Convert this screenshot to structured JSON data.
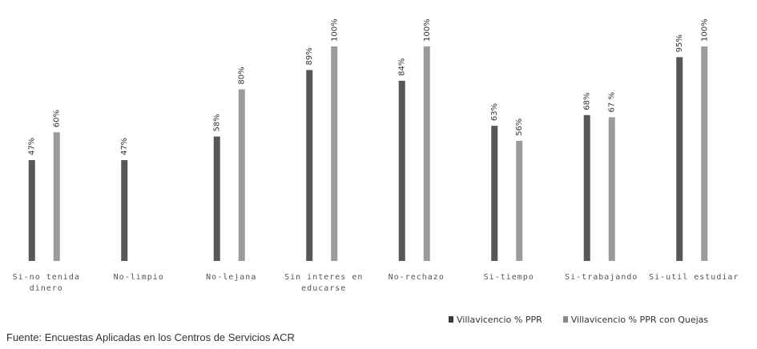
{
  "chart_data": {
    "type": "bar",
    "title": "",
    "xlabel": "",
    "ylabel": "",
    "ylim": [
      0,
      100
    ],
    "grid": false,
    "legend_position": "bottom-right",
    "categories": [
      "Si-no tenida dinero",
      "No-limpio",
      "No-lejana",
      "Sin interes en educarse",
      "No-rechazo",
      "Si-tiempo",
      "Si-trabajando",
      "Si-util estudiar"
    ],
    "series": [
      {
        "name": "Villavicencio % PPR",
        "color": "#3a3a3a",
        "values": [
          47,
          47,
          58,
          89,
          84,
          63,
          68,
          95
        ],
        "labels": [
          "47%",
          "47%",
          "58%",
          "89%",
          "84%",
          "63%",
          "68%",
          "95%"
        ]
      },
      {
        "name": "Villavicencio % PPR con Quejas",
        "color": "#8a8a8a",
        "values": [
          60,
          null,
          80,
          100,
          100,
          56,
          67,
          100
        ],
        "labels": [
          "60%",
          "",
          "80%",
          "100%",
          "100%",
          "56%",
          "67 %",
          "100%"
        ]
      }
    ]
  },
  "source_text": "Fuente: Encuestas Aplicadas en los Centros de Servicios ACR"
}
